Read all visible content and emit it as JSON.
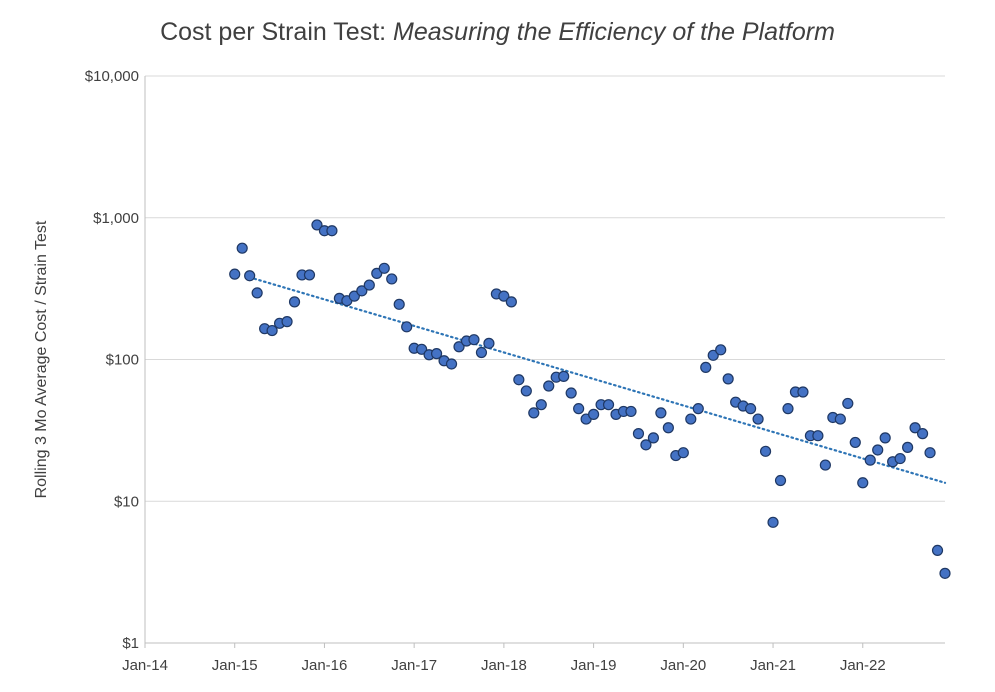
{
  "chart_data": {
    "type": "scatter",
    "title": "Cost per Strain Test:",
    "subtitle": "Measuring the Efficiency of the Platform",
    "xlabel": "",
    "ylabel": "Rolling 3 Mo Average Cost / Strain Test",
    "yscale": "log",
    "ylim": [
      1,
      10000
    ],
    "xlim": [
      "2014-01",
      "2022-12"
    ],
    "y_ticks": [
      1,
      10,
      100,
      1000,
      10000
    ],
    "y_tick_labels": [
      "$1",
      "$10",
      "$100",
      "$1,000",
      "$10,000"
    ],
    "x_ticks": [
      "2014-01",
      "2015-01",
      "2016-01",
      "2017-01",
      "2018-01",
      "2019-01",
      "2020-01",
      "2021-01",
      "2022-01"
    ],
    "x_tick_labels": [
      "Jan-14",
      "Jan-15",
      "Jan-16",
      "Jan-17",
      "Jan-18",
      "Jan-19",
      "Jan-20",
      "Jan-21",
      "Jan-22"
    ],
    "grid": true,
    "trendline": {
      "type": "exponential",
      "style": "dotted",
      "start": {
        "x": "2015-03",
        "y": 380
      },
      "end": {
        "x": "2022-12",
        "y": 13.5
      }
    },
    "marker_color": "#4472C4",
    "marker_edge": "#1F3864",
    "trend_color": "#2E75B6",
    "series": [
      {
        "name": "Rolling 3 Mo Average Cost / Strain Test",
        "points": [
          {
            "x": "2015-01",
            "y": 400
          },
          {
            "x": "2015-02",
            "y": 610
          },
          {
            "x": "2015-03",
            "y": 390
          },
          {
            "x": "2015-04",
            "y": 295
          },
          {
            "x": "2015-05",
            "y": 165
          },
          {
            "x": "2015-06",
            "y": 160
          },
          {
            "x": "2015-07",
            "y": 180
          },
          {
            "x": "2015-08",
            "y": 185
          },
          {
            "x": "2015-09",
            "y": 255
          },
          {
            "x": "2015-10",
            "y": 395
          },
          {
            "x": "2015-11",
            "y": 395
          },
          {
            "x": "2015-12",
            "y": 890
          },
          {
            "x": "2016-01",
            "y": 810
          },
          {
            "x": "2016-02",
            "y": 810
          },
          {
            "x": "2016-03",
            "y": 270
          },
          {
            "x": "2016-04",
            "y": 260
          },
          {
            "x": "2016-05",
            "y": 280
          },
          {
            "x": "2016-06",
            "y": 305
          },
          {
            "x": "2016-07",
            "y": 335
          },
          {
            "x": "2016-08",
            "y": 405
          },
          {
            "x": "2016-09",
            "y": 440
          },
          {
            "x": "2016-10",
            "y": 370
          },
          {
            "x": "2016-11",
            "y": 245
          },
          {
            "x": "2016-12",
            "y": 170
          },
          {
            "x": "2017-01",
            "y": 120
          },
          {
            "x": "2017-02",
            "y": 118
          },
          {
            "x": "2017-03",
            "y": 108
          },
          {
            "x": "2017-04",
            "y": 110
          },
          {
            "x": "2017-05",
            "y": 98
          },
          {
            "x": "2017-06",
            "y": 93
          },
          {
            "x": "2017-07",
            "y": 123
          },
          {
            "x": "2017-08",
            "y": 135
          },
          {
            "x": "2017-09",
            "y": 138
          },
          {
            "x": "2017-10",
            "y": 112
          },
          {
            "x": "2017-11",
            "y": 130
          },
          {
            "x": "2017-12",
            "y": 290
          },
          {
            "x": "2018-01",
            "y": 280
          },
          {
            "x": "2018-02",
            "y": 255
          },
          {
            "x": "2018-03",
            "y": 72
          },
          {
            "x": "2018-04",
            "y": 60
          },
          {
            "x": "2018-05",
            "y": 42
          },
          {
            "x": "2018-06",
            "y": 48
          },
          {
            "x": "2018-07",
            "y": 65
          },
          {
            "x": "2018-08",
            "y": 75
          },
          {
            "x": "2018-09",
            "y": 76
          },
          {
            "x": "2018-10",
            "y": 58
          },
          {
            "x": "2018-11",
            "y": 45
          },
          {
            "x": "2018-12",
            "y": 38
          },
          {
            "x": "2019-01",
            "y": 41
          },
          {
            "x": "2019-02",
            "y": 48
          },
          {
            "x": "2019-03",
            "y": 48
          },
          {
            "x": "2019-04",
            "y": 41
          },
          {
            "x": "2019-05",
            "y": 43
          },
          {
            "x": "2019-06",
            "y": 43
          },
          {
            "x": "2019-07",
            "y": 30
          },
          {
            "x": "2019-08",
            "y": 25
          },
          {
            "x": "2019-09",
            "y": 28
          },
          {
            "x": "2019-10",
            "y": 42
          },
          {
            "x": "2019-11",
            "y": 33
          },
          {
            "x": "2019-12",
            "y": 21
          },
          {
            "x": "2020-01",
            "y": 22
          },
          {
            "x": "2020-02",
            "y": 38
          },
          {
            "x": "2020-03",
            "y": 45
          },
          {
            "x": "2020-04",
            "y": 88
          },
          {
            "x": "2020-05",
            "y": 107
          },
          {
            "x": "2020-06",
            "y": 117
          },
          {
            "x": "2020-07",
            "y": 73
          },
          {
            "x": "2020-08",
            "y": 50
          },
          {
            "x": "2020-09",
            "y": 47
          },
          {
            "x": "2020-10",
            "y": 45
          },
          {
            "x": "2020-11",
            "y": 38
          },
          {
            "x": "2020-12",
            "y": 22.5
          },
          {
            "x": "2021-01",
            "y": 7.1
          },
          {
            "x": "2021-02",
            "y": 14
          },
          {
            "x": "2021-03",
            "y": 45
          },
          {
            "x": "2021-04",
            "y": 59
          },
          {
            "x": "2021-05",
            "y": 59
          },
          {
            "x": "2021-06",
            "y": 29
          },
          {
            "x": "2021-07",
            "y": 29
          },
          {
            "x": "2021-08",
            "y": 18
          },
          {
            "x": "2021-09",
            "y": 39
          },
          {
            "x": "2021-10",
            "y": 38
          },
          {
            "x": "2021-11",
            "y": 49
          },
          {
            "x": "2021-12",
            "y": 26
          },
          {
            "x": "2022-01",
            "y": 13.5
          },
          {
            "x": "2022-02",
            "y": 19.5
          },
          {
            "x": "2022-03",
            "y": 23
          },
          {
            "x": "2022-04",
            "y": 28
          },
          {
            "x": "2022-05",
            "y": 19
          },
          {
            "x": "2022-06",
            "y": 20
          },
          {
            "x": "2022-07",
            "y": 24
          },
          {
            "x": "2022-08",
            "y": 33
          },
          {
            "x": "2022-09",
            "y": 30
          },
          {
            "x": "2022-10",
            "y": 22
          },
          {
            "x": "2022-11",
            "y": 4.5
          },
          {
            "x": "2022-12",
            "y": 3.1
          }
        ]
      }
    ]
  }
}
